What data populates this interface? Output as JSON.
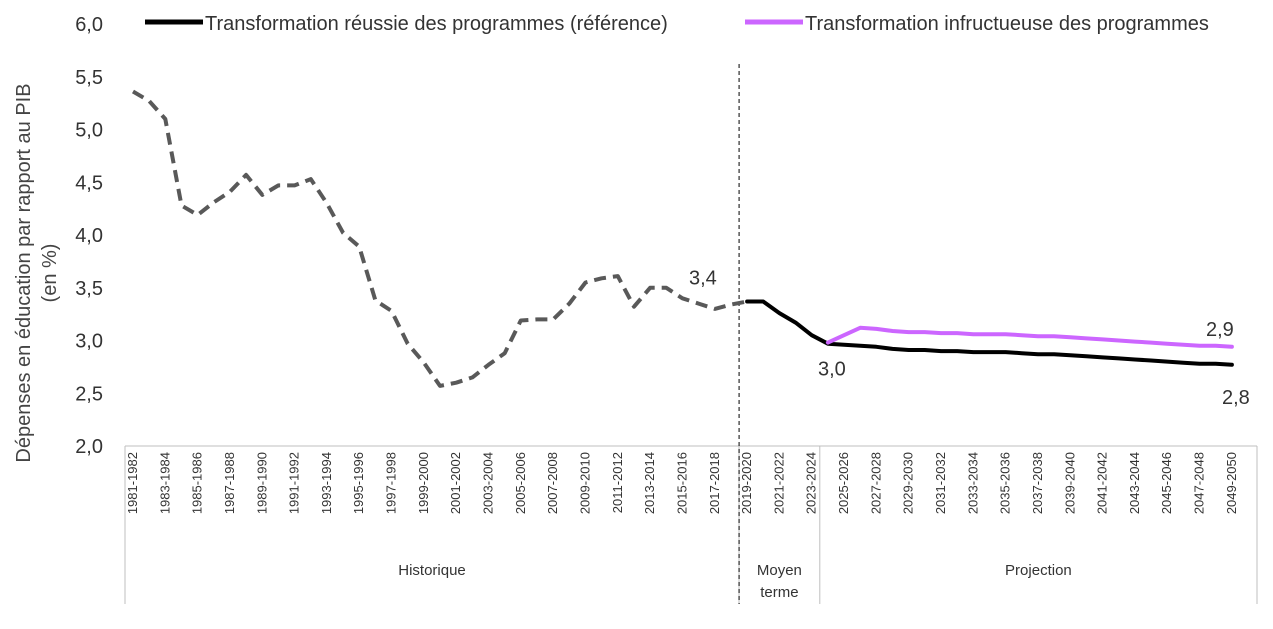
{
  "chart_data": {
    "type": "line",
    "ylabel": "Dépenses en éducation par rapport au PIB (en %)",
    "ylabel_lines": [
      "Dépenses en éducation par rapport au PIB",
      "(en %)"
    ],
    "ylim": [
      2.0,
      6.0
    ],
    "yticks": [
      "2,0",
      "2,5",
      "3,0",
      "3,5",
      "4,0",
      "4,5",
      "5,0",
      "5,5",
      "6,0"
    ],
    "x_start_year": 1981,
    "x_end_year": 2050,
    "x_tick_labels": [
      "1981-1982",
      "1983-1984",
      "1985-1986",
      "1987-1988",
      "1989-1990",
      "1991-1992",
      "1993-1994",
      "1995-1996",
      "1997-1998",
      "1999-2000",
      "2001-2002",
      "2003-2004",
      "2005-2006",
      "2007-2008",
      "2009-2010",
      "2011-2012",
      "2013-2014",
      "2015-2016",
      "2017-2018",
      "2019-2020",
      "2021-2022",
      "2023-2024",
      "2025-2026",
      "2027-2028",
      "2029-2030",
      "2031-2032",
      "2033-2034",
      "2035-2036",
      "2037-2038",
      "2039-2040",
      "2041-2042",
      "2043-2044",
      "2045-2046",
      "2047-2048",
      "2049-2050"
    ],
    "groups": [
      {
        "label": "Historique",
        "from": "1981-1982",
        "to": "2018-2019"
      },
      {
        "label": "Moyen\nterme",
        "label_lines": [
          "Moyen",
          "terme"
        ],
        "from": "2019-2020",
        "to": "2023-2024"
      },
      {
        "label": "Projection",
        "from": "2024-2025",
        "to": "2049-2050"
      }
    ],
    "divider_at": "2019-2020",
    "legend_position": "top",
    "grid": false,
    "series": [
      {
        "name": "",
        "style": "dashed",
        "color": "#595959",
        "points": [
          [
            "1981-1982",
            5.36
          ],
          [
            "1982-1983",
            5.27
          ],
          [
            "1983-1984",
            5.1
          ],
          [
            "1984-1985",
            4.28
          ],
          [
            "1985-1986",
            4.19
          ],
          [
            "1986-1987",
            4.31
          ],
          [
            "1987-1988",
            4.41
          ],
          [
            "1988-1989",
            4.57
          ],
          [
            "1989-1990",
            4.38
          ],
          [
            "1990-1991",
            4.47
          ],
          [
            "1991-1992",
            4.47
          ],
          [
            "1992-1993",
            4.53
          ],
          [
            "1993-1994",
            4.3
          ],
          [
            "1994-1995",
            4.02
          ],
          [
            "1995-1996",
            3.89
          ],
          [
            "1996-1997",
            3.38
          ],
          [
            "1997-1998",
            3.28
          ],
          [
            "1998-1999",
            2.97
          ],
          [
            "1999-2000",
            2.79
          ],
          [
            "2000-2001",
            2.57
          ],
          [
            "2001-2002",
            2.6
          ],
          [
            "2002-2003",
            2.65
          ],
          [
            "2003-2004",
            2.77
          ],
          [
            "2004-2005",
            2.88
          ],
          [
            "2005-2006",
            3.19
          ],
          [
            "2006-2007",
            3.2
          ],
          [
            "2007-2008",
            3.2
          ],
          [
            "2008-2009",
            3.35
          ],
          [
            "2009-2010",
            3.55
          ],
          [
            "2010-2011",
            3.59
          ],
          [
            "2011-2012",
            3.61
          ],
          [
            "2012-2013",
            3.32
          ],
          [
            "2013-2014",
            3.5
          ],
          [
            "2014-2015",
            3.5
          ],
          [
            "2015-2016",
            3.4
          ],
          [
            "2016-2017",
            3.35
          ],
          [
            "2017-2018",
            3.3
          ],
          [
            "2018-2019",
            3.34
          ],
          [
            "2019-2020",
            3.37
          ]
        ]
      },
      {
        "name": "Transformation réussie des programmes (référence)",
        "style": "solid",
        "color": "#000000",
        "points": [
          [
            "2019-2020",
            3.37
          ],
          [
            "2020-2021",
            3.37
          ],
          [
            "2021-2022",
            3.26
          ],
          [
            "2022-2023",
            3.17
          ],
          [
            "2023-2024",
            3.05
          ],
          [
            "2024-2025",
            2.97
          ],
          [
            "2025-2026",
            2.96
          ],
          [
            "2026-2027",
            2.95
          ],
          [
            "2027-2028",
            2.94
          ],
          [
            "2028-2029",
            2.92
          ],
          [
            "2029-2030",
            2.91
          ],
          [
            "2030-2031",
            2.91
          ],
          [
            "2031-2032",
            2.9
          ],
          [
            "2032-2033",
            2.9
          ],
          [
            "2033-2034",
            2.89
          ],
          [
            "2034-2035",
            2.89
          ],
          [
            "2035-2036",
            2.89
          ],
          [
            "2036-2037",
            2.88
          ],
          [
            "2037-2038",
            2.87
          ],
          [
            "2038-2039",
            2.87
          ],
          [
            "2039-2040",
            2.86
          ],
          [
            "2040-2041",
            2.85
          ],
          [
            "2041-2042",
            2.84
          ],
          [
            "2042-2043",
            2.83
          ],
          [
            "2043-2044",
            2.82
          ],
          [
            "2044-2045",
            2.81
          ],
          [
            "2045-2046",
            2.8
          ],
          [
            "2046-2047",
            2.79
          ],
          [
            "2047-2048",
            2.78
          ],
          [
            "2048-2049",
            2.78
          ],
          [
            "2049-2050",
            2.77
          ]
        ]
      },
      {
        "name": "Transformation infructueuse des programmes",
        "style": "solid",
        "color": "#cc66ff",
        "points": [
          [
            "2024-2025",
            2.98
          ],
          [
            "2025-2026",
            3.05
          ],
          [
            "2026-2027",
            3.12
          ],
          [
            "2027-2028",
            3.11
          ],
          [
            "2028-2029",
            3.09
          ],
          [
            "2029-2030",
            3.08
          ],
          [
            "2030-2031",
            3.08
          ],
          [
            "2031-2032",
            3.07
          ],
          [
            "2032-2033",
            3.07
          ],
          [
            "2033-2034",
            3.06
          ],
          [
            "2034-2035",
            3.06
          ],
          [
            "2035-2036",
            3.06
          ],
          [
            "2036-2037",
            3.05
          ],
          [
            "2037-2038",
            3.04
          ],
          [
            "2038-2039",
            3.04
          ],
          [
            "2039-2040",
            3.03
          ],
          [
            "2040-2041",
            3.02
          ],
          [
            "2041-2042",
            3.01
          ],
          [
            "2042-2043",
            3.0
          ],
          [
            "2043-2044",
            2.99
          ],
          [
            "2044-2045",
            2.98
          ],
          [
            "2045-2046",
            2.97
          ],
          [
            "2046-2047",
            2.96
          ],
          [
            "2047-2048",
            2.95
          ],
          [
            "2048-2049",
            2.95
          ],
          [
            "2049-2050",
            2.94
          ]
        ]
      }
    ],
    "annotations": [
      {
        "text": "3,4",
        "x": "2018-2019",
        "y": 3.37,
        "placement": "above-left"
      },
      {
        "text": "3,0",
        "x": "2024-2025",
        "y": 2.97,
        "placement": "below"
      },
      {
        "text": "2,9",
        "x": "2049-2050",
        "y": 2.94,
        "placement": "above"
      },
      {
        "text": "2,8",
        "x": "2049-2050",
        "y": 2.77,
        "placement": "below"
      }
    ]
  }
}
